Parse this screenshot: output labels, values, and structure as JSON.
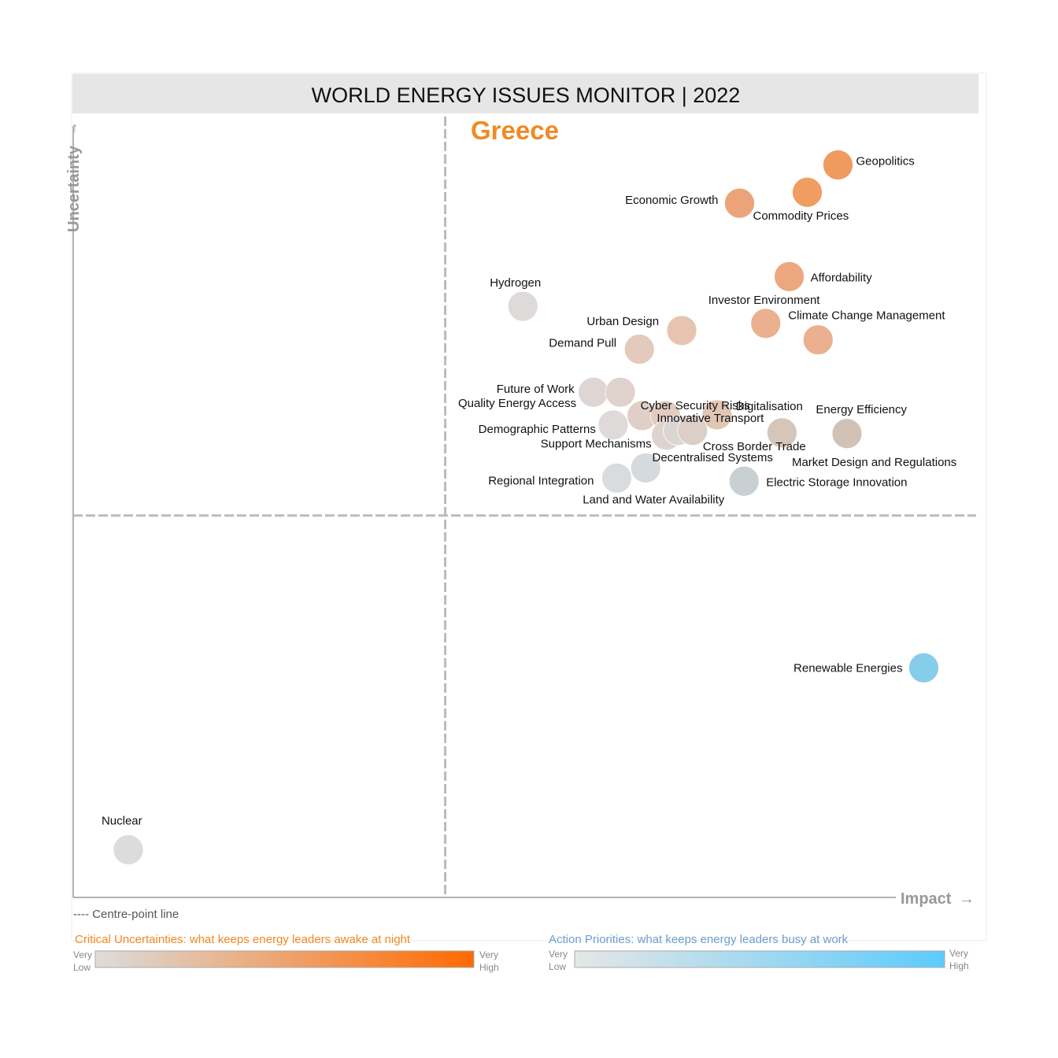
{
  "chart_data": {
    "type": "scatter",
    "title": "WORLD ENERGY ISSUES MONITOR | 2022",
    "subtitle": "Greece",
    "xlabel": "Impact",
    "ylabel": "Uncertainty",
    "xlim": [
      0,
      10
    ],
    "ylim": [
      0,
      10
    ],
    "centre": {
      "x": 4.12,
      "y": 4.89
    },
    "grid": false,
    "centre_line_note": "---- Centre-point line",
    "points": [
      {
        "name": "Geopolitics",
        "x": 8.47,
        "y": 9.38,
        "color": "#ef9a5e"
      },
      {
        "name": "Commodity Prices",
        "x": 8.13,
        "y": 9.03,
        "color": "#f09d62"
      },
      {
        "name": "Economic Growth",
        "x": 7.38,
        "y": 8.89,
        "color": "#eba47a"
      },
      {
        "name": "Affordability",
        "x": 7.93,
        "y": 7.95,
        "color": "#eba87f"
      },
      {
        "name": "Investor Environment",
        "x": 7.67,
        "y": 7.35,
        "color": "#ebb08f"
      },
      {
        "name": "Climate Change Management",
        "x": 8.25,
        "y": 7.14,
        "color": "#ebb08f"
      },
      {
        "name": "Urban Design",
        "x": 6.74,
        "y": 7.26,
        "color": "#e6c4b0"
      },
      {
        "name": "Demand Pull",
        "x": 6.27,
        "y": 7.02,
        "color": "#e4cabd"
      },
      {
        "name": "Hydrogen",
        "x": 4.98,
        "y": 7.57,
        "color": "#dedada"
      },
      {
        "name": "Future of Work",
        "x": 5.76,
        "y": 6.47,
        "color": "#ddd6d3"
      },
      {
        "name": "Quality Energy Access",
        "x": 6.06,
        "y": 6.47,
        "color": "#dfd2cc"
      },
      {
        "name": "Cyber Security Risks",
        "x": 6.3,
        "y": 6.17,
        "color": "#e0cfc6"
      },
      {
        "name": "Innovative Transport",
        "x": 6.56,
        "y": 6.17,
        "color": "#e2ccbf"
      },
      {
        "name": "Digitalisation",
        "x": 7.13,
        "y": 6.18,
        "color": "#e2c6b4"
      },
      {
        "name": "Demographic Patterns",
        "x": 5.98,
        "y": 6.05,
        "color": "#dddad9"
      },
      {
        "name": "Support Mechanisms",
        "x": 6.57,
        "y": 5.92,
        "color": "#ddd4cf"
      },
      {
        "name": "Decentralised Systems",
        "x": 6.7,
        "y": 5.98,
        "color": "#dcd6d3"
      },
      {
        "name": "Cross Border Trade",
        "x": 6.86,
        "y": 5.98,
        "color": "#dccfc7"
      },
      {
        "name": "Energy Efficiency",
        "x": 7.85,
        "y": 5.95,
        "color": "#d6c6ba"
      },
      {
        "name": "Market Design and Regulations",
        "x": 8.57,
        "y": 5.94,
        "color": "#d2c2b5"
      },
      {
        "name": "Regional Integration",
        "x": 6.02,
        "y": 5.37,
        "color": "#d8dcdf"
      },
      {
        "name": "Land and Water Availability",
        "x": 6.34,
        "y": 5.5,
        "color": "#d4dadd"
      },
      {
        "name": "Electric Storage Innovation",
        "x": 7.43,
        "y": 5.33,
        "color": "#c8d0d3"
      },
      {
        "name": "Renewable Energies",
        "x": 9.42,
        "y": 2.94,
        "color": "#85cdeb"
      },
      {
        "name": "Nuclear",
        "x": 0.61,
        "y": 0.61,
        "color": "#dcdcdc"
      }
    ],
    "legends": [
      {
        "title": "Critical Uncertainties: what keeps energy leaders awake at night",
        "low": "Very Low",
        "high": "Very High",
        "from": "#dcdcdc",
        "to": "#ff6a00",
        "title_color": "#f08a24"
      },
      {
        "title": "Action Priorities: what keeps energy leaders busy at work",
        "low": "Very Low",
        "high": "Very High",
        "from": "#e6e6e6",
        "to": "#5ccbfc",
        "title_color": "#6d9ecf"
      }
    ]
  }
}
